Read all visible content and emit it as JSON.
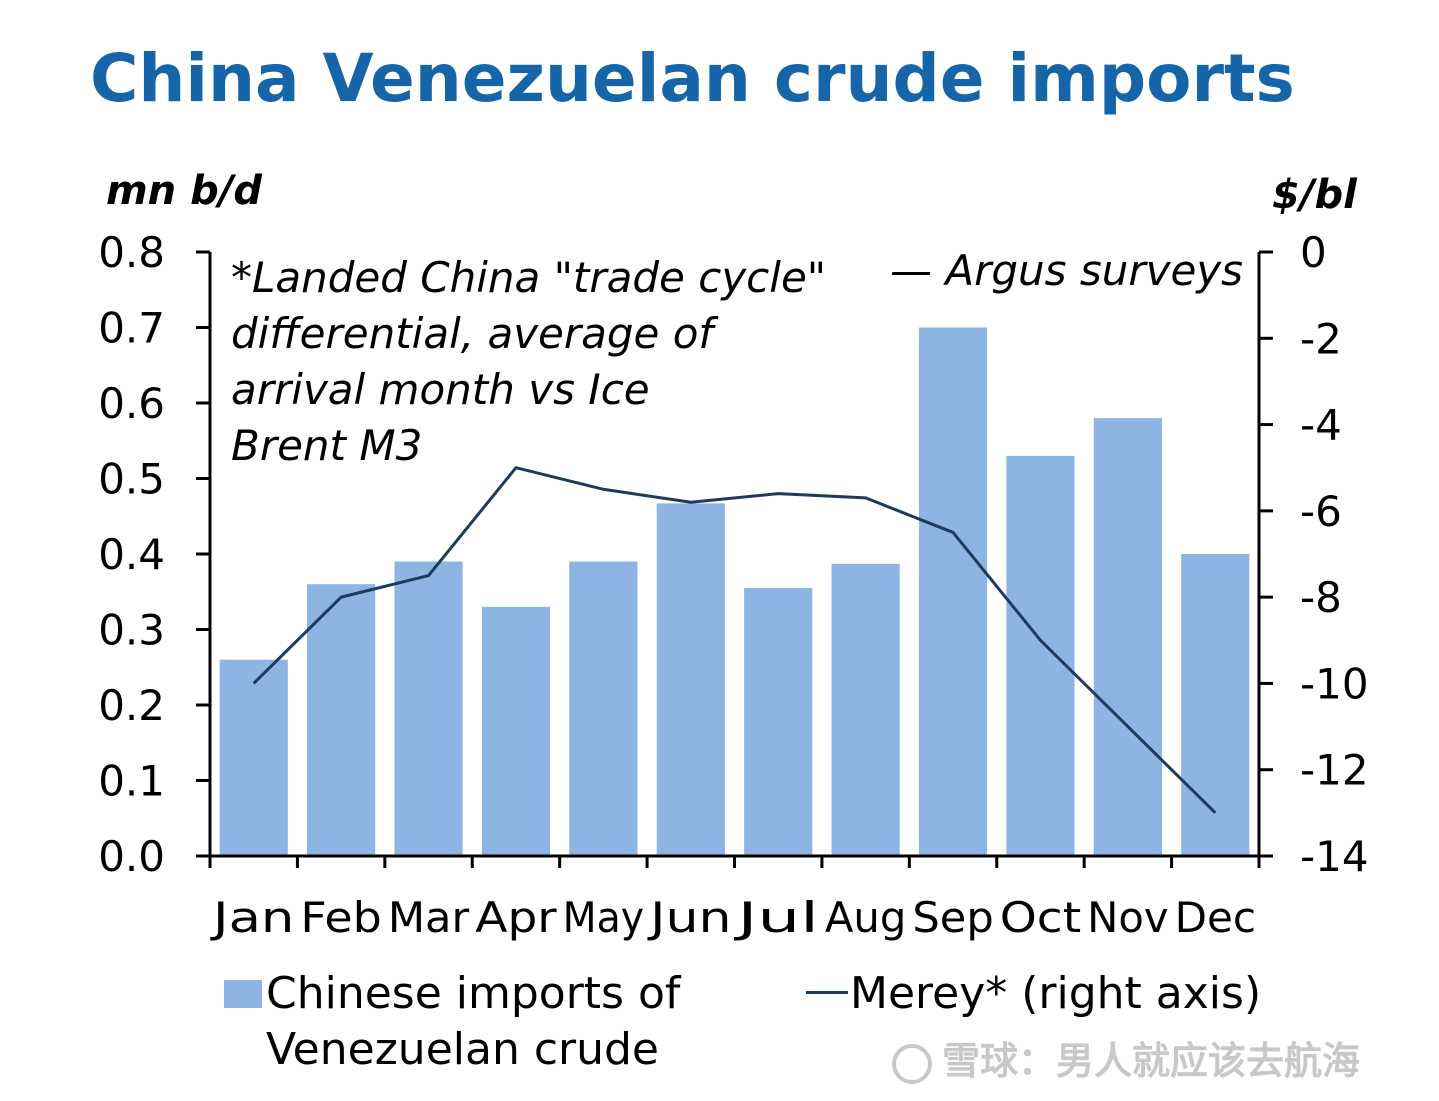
{
  "title": "China Venezuelan crude imports",
  "left_unit": "mn b/d",
  "right_unit": "$/bl",
  "note_lines": [
    "*Landed China \"trade cycle\"",
    "differential, average of",
    "arrival month vs Ice",
    "Brent M3"
  ],
  "source_label": "— Argus surveys",
  "legend": {
    "bars_line1": "Chinese imports of",
    "bars_line2": "Venezuelan crude",
    "line": "Merey* (right axis)"
  },
  "watermark": "雪球：男人就应该去航海",
  "colors": {
    "title": "#1565a8",
    "bars": "#8db4e2",
    "line": "#1f3a5f"
  },
  "chart_data": {
    "type": "bar",
    "categories": [
      "Jan",
      "Feb",
      "Mar",
      "Apr",
      "May",
      "Jun",
      "Jul",
      "Aug",
      "Sep",
      "Oct",
      "Nov",
      "Dec"
    ],
    "series": [
      {
        "name": "Chinese imports of Venezuelan crude",
        "type": "bar",
        "axis": "left",
        "values": [
          0.26,
          0.36,
          0.39,
          0.33,
          0.39,
          0.467,
          0.355,
          0.387,
          0.7,
          0.53,
          0.58,
          0.4
        ]
      },
      {
        "name": "Merey* (right axis)",
        "type": "line",
        "axis": "right",
        "values": [
          -10.0,
          -8.0,
          -7.5,
          -5.0,
          -5.5,
          -5.8,
          -5.6,
          -5.7,
          -6.5,
          -9.0,
          -11.0,
          -13.0
        ]
      }
    ],
    "y_left": {
      "min": 0,
      "max": 0.8,
      "step": 0.1,
      "ticks": [
        "0.0",
        "0.1",
        "0.2",
        "0.3",
        "0.4",
        "0.5",
        "0.6",
        "0.7",
        "0.8"
      ]
    },
    "y_right": {
      "min": -14,
      "max": 0,
      "step": 2,
      "ticks": [
        "-14",
        "-12",
        "-10",
        "-8",
        "-6",
        "-4",
        "-2",
        "0"
      ]
    },
    "grid": false,
    "legend_position": "bottom"
  }
}
